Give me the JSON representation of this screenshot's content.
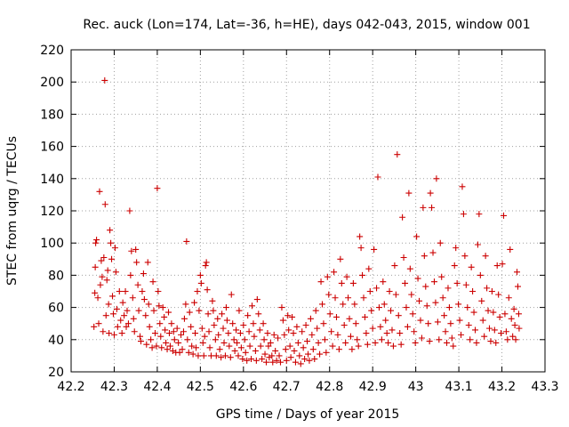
{
  "chart_data": {
    "type": "scatter",
    "title": "Rec. auck (Lon=174, Lat=-36, h=HE), days 042-043, 2015, window 001",
    "xlabel": "GPS time / Days of year 2015",
    "ylabel": "STEC from uqrg / TECUs",
    "xlim": [
      42.2,
      43.3
    ],
    "ylim": [
      20,
      220
    ],
    "xticks": [
      "42.2",
      "42.3",
      "42.4",
      "42.5",
      "42.6",
      "42.7",
      "42.8",
      "42.9",
      "43",
      "43.1",
      "43.2",
      "43.3"
    ],
    "yticks": [
      "20",
      "40",
      "60",
      "80",
      "100",
      "120",
      "140",
      "160",
      "180",
      "200",
      "220"
    ],
    "grid": true,
    "marker": "plus",
    "color": "#cc0000",
    "points": [
      [
        42.253,
        48
      ],
      [
        42.255,
        69
      ],
      [
        42.256,
        85
      ],
      [
        42.257,
        100
      ],
      [
        42.259,
        102
      ],
      [
        42.262,
        66
      ],
      [
        42.264,
        50
      ],
      [
        42.266,
        132
      ],
      [
        42.268,
        74
      ],
      [
        42.27,
        89
      ],
      [
        42.272,
        79
      ],
      [
        42.274,
        45
      ],
      [
        42.276,
        91
      ],
      [
        42.278,
        201
      ],
      [
        42.279,
        124
      ],
      [
        42.281,
        55
      ],
      [
        42.283,
        77
      ],
      [
        42.285,
        83
      ],
      [
        42.287,
        62
      ],
      [
        42.288,
        44
      ],
      [
        42.29,
        108
      ],
      [
        42.292,
        100
      ],
      [
        42.294,
        90
      ],
      [
        42.296,
        67
      ],
      [
        42.298,
        56
      ],
      [
        42.3,
        43
      ],
      [
        42.302,
        97
      ],
      [
        42.304,
        82
      ],
      [
        42.306,
        59
      ],
      [
        42.308,
        48
      ],
      [
        42.312,
        70
      ],
      [
        42.315,
        52
      ],
      [
        42.318,
        44
      ],
      [
        42.32,
        63
      ],
      [
        42.323,
        55
      ],
      [
        42.326,
        70
      ],
      [
        42.328,
        48
      ],
      [
        42.33,
        58
      ],
      [
        42.333,
        50
      ],
      [
        42.336,
        120
      ],
      [
        42.338,
        80
      ],
      [
        42.34,
        95
      ],
      [
        42.343,
        66
      ],
      [
        42.345,
        53
      ],
      [
        42.347,
        45
      ],
      [
        42.35,
        96
      ],
      [
        42.352,
        88
      ],
      [
        42.355,
        74
      ],
      [
        42.357,
        58
      ],
      [
        42.36,
        42
      ],
      [
        42.362,
        39
      ],
      [
        42.365,
        70
      ],
      [
        42.368,
        81
      ],
      [
        42.37,
        65
      ],
      [
        42.373,
        55
      ],
      [
        42.375,
        37
      ],
      [
        42.378,
        88
      ],
      [
        42.38,
        62
      ],
      [
        42.382,
        48
      ],
      [
        42.385,
        40
      ],
      [
        42.388,
        35
      ],
      [
        42.39,
        76
      ],
      [
        42.392,
        58
      ],
      [
        42.395,
        44
      ],
      [
        42.398,
        36
      ],
      [
        42.4,
        134
      ],
      [
        42.402,
        70
      ],
      [
        42.404,
        61
      ],
      [
        42.406,
        50
      ],
      [
        42.408,
        42
      ],
      [
        42.41,
        35
      ],
      [
        42.413,
        60
      ],
      [
        42.416,
        54
      ],
      [
        42.418,
        46
      ],
      [
        42.42,
        38
      ],
      [
        42.423,
        34
      ],
      [
        42.426,
        57
      ],
      [
        42.428,
        44
      ],
      [
        42.43,
        36
      ],
      [
        42.433,
        50
      ],
      [
        42.436,
        33
      ],
      [
        42.438,
        45
      ],
      [
        42.44,
        40
      ],
      [
        42.443,
        32
      ],
      [
        42.446,
        47
      ],
      [
        42.449,
        38
      ],
      [
        42.452,
        32
      ],
      [
        42.455,
        43
      ],
      [
        42.458,
        34
      ],
      [
        42.461,
        45
      ],
      [
        42.463,
        53
      ],
      [
        42.466,
        62
      ],
      [
        42.468,
        101
      ],
      [
        42.47,
        40
      ],
      [
        42.473,
        32
      ],
      [
        42.475,
        57
      ],
      [
        42.478,
        48
      ],
      [
        42.48,
        36
      ],
      [
        42.483,
        31
      ],
      [
        42.486,
        63
      ],
      [
        42.488,
        44
      ],
      [
        42.49,
        35
      ],
      [
        42.493,
        70
      ],
      [
        42.495,
        30
      ],
      [
        42.497,
        58
      ],
      [
        42.5,
        80
      ],
      [
        42.502,
        75
      ],
      [
        42.504,
        47
      ],
      [
        42.506,
        38
      ],
      [
        42.508,
        30
      ],
      [
        42.51,
        42
      ],
      [
        42.512,
        86
      ],
      [
        42.514,
        88
      ],
      [
        42.516,
        71
      ],
      [
        42.518,
        56
      ],
      [
        42.52,
        45
      ],
      [
        42.522,
        35
      ],
      [
        42.525,
        30
      ],
      [
        42.528,
        64
      ],
      [
        42.53,
        58
      ],
      [
        42.532,
        49
      ],
      [
        42.535,
        40
      ],
      [
        42.537,
        30
      ],
      [
        42.54,
        53
      ],
      [
        42.542,
        43
      ],
      [
        42.545,
        34
      ],
      [
        42.548,
        29
      ],
      [
        42.55,
        56
      ],
      [
        42.553,
        47
      ],
      [
        42.555,
        38
      ],
      [
        42.558,
        30
      ],
      [
        42.56,
        60
      ],
      [
        42.562,
        52
      ],
      [
        42.565,
        44
      ],
      [
        42.567,
        36
      ],
      [
        42.57,
        29
      ],
      [
        42.572,
        68
      ],
      [
        42.575,
        50
      ],
      [
        42.578,
        40
      ],
      [
        42.58,
        33
      ],
      [
        42.583,
        46
      ],
      [
        42.585,
        38
      ],
      [
        42.588,
        30
      ],
      [
        42.59,
        58
      ],
      [
        42.593,
        44
      ],
      [
        42.595,
        35
      ],
      [
        42.598,
        28
      ],
      [
        42.6,
        49
      ],
      [
        42.603,
        40
      ],
      [
        42.605,
        32
      ],
      [
        42.608,
        27
      ],
      [
        42.61,
        55
      ],
      [
        42.613,
        45
      ],
      [
        42.615,
        36
      ],
      [
        42.618,
        28
      ],
      [
        42.62,
        61
      ],
      [
        42.623,
        50
      ],
      [
        42.625,
        42
      ],
      [
        42.628,
        33
      ],
      [
        42.63,
        27
      ],
      [
        42.632,
        65
      ],
      [
        42.635,
        56
      ],
      [
        42.638,
        46
      ],
      [
        42.64,
        36
      ],
      [
        42.643,
        28
      ],
      [
        42.646,
        50
      ],
      [
        42.648,
        40
      ],
      [
        42.65,
        31
      ],
      [
        42.653,
        26
      ],
      [
        42.656,
        44
      ],
      [
        42.658,
        36
      ],
      [
        42.66,
        29
      ],
      [
        42.663,
        38
      ],
      [
        42.666,
        30
      ],
      [
        42.668,
        26
      ],
      [
        42.671,
        43
      ],
      [
        42.674,
        33
      ],
      [
        42.677,
        27
      ],
      [
        42.68,
        41
      ],
      [
        42.683,
        30
      ],
      [
        42.686,
        26
      ],
      [
        42.689,
        60
      ],
      [
        42.692,
        52
      ],
      [
        42.695,
        43
      ],
      [
        42.698,
        34
      ],
      [
        42.7,
        27
      ],
      [
        42.703,
        55
      ],
      [
        42.705,
        46
      ],
      [
        42.708,
        36
      ],
      [
        42.71,
        29
      ],
      [
        42.713,
        54
      ],
      [
        42.716,
        44
      ],
      [
        42.718,
        33
      ],
      [
        42.721,
        26
      ],
      [
        42.724,
        48
      ],
      [
        42.727,
        38
      ],
      [
        42.73,
        30
      ],
      [
        42.733,
        25
      ],
      [
        42.736,
        45
      ],
      [
        42.739,
        35
      ],
      [
        42.742,
        28
      ],
      [
        42.745,
        49
      ],
      [
        42.748,
        39
      ],
      [
        42.75,
        31
      ],
      [
        42.753,
        27
      ],
      [
        42.756,
        53
      ],
      [
        42.759,
        43
      ],
      [
        42.762,
        34
      ],
      [
        42.765,
        28
      ],
      [
        42.768,
        58
      ],
      [
        42.771,
        47
      ],
      [
        42.774,
        38
      ],
      [
        42.777,
        31
      ],
      [
        42.78,
        76
      ],
      [
        42.783,
        62
      ],
      [
        42.786,
        50
      ],
      [
        42.789,
        40
      ],
      [
        42.792,
        32
      ],
      [
        42.795,
        79
      ],
      [
        42.798,
        68
      ],
      [
        42.801,
        56
      ],
      [
        42.804,
        45
      ],
      [
        42.807,
        36
      ],
      [
        42.81,
        82
      ],
      [
        42.813,
        66
      ],
      [
        42.816,
        54
      ],
      [
        42.819,
        43
      ],
      [
        42.822,
        34
      ],
      [
        42.825,
        90
      ],
      [
        42.828,
        75
      ],
      [
        42.831,
        62
      ],
      [
        42.834,
        49
      ],
      [
        42.837,
        38
      ],
      [
        42.84,
        79
      ],
      [
        42.843,
        66
      ],
      [
        42.846,
        53
      ],
      [
        42.849,
        42
      ],
      [
        42.852,
        34
      ],
      [
        42.855,
        75
      ],
      [
        42.858,
        62
      ],
      [
        42.861,
        50
      ],
      [
        42.864,
        40
      ],
      [
        42.867,
        36
      ],
      [
        42.87,
        104
      ],
      [
        42.873,
        97
      ],
      [
        42.876,
        80
      ],
      [
        42.879,
        66
      ],
      [
        42.882,
        54
      ],
      [
        42.885,
        44
      ],
      [
        42.888,
        37
      ],
      [
        42.891,
        84
      ],
      [
        42.894,
        70
      ],
      [
        42.897,
        58
      ],
      [
        42.9,
        47
      ],
      [
        42.903,
        96
      ],
      [
        42.906,
        38
      ],
      [
        42.909,
        72
      ],
      [
        42.912,
        141
      ],
      [
        42.915,
        60
      ],
      [
        42.918,
        48
      ],
      [
        42.921,
        40
      ],
      [
        42.924,
        76
      ],
      [
        42.927,
        62
      ],
      [
        42.93,
        52
      ],
      [
        42.933,
        44
      ],
      [
        42.936,
        38
      ],
      [
        42.939,
        70
      ],
      [
        42.942,
        58
      ],
      [
        42.945,
        46
      ],
      [
        42.948,
        36
      ],
      [
        42.951,
        86
      ],
      [
        42.954,
        68
      ],
      [
        42.957,
        155
      ],
      [
        42.96,
        55
      ],
      [
        42.963,
        44
      ],
      [
        42.966,
        37
      ],
      [
        42.969,
        116
      ],
      [
        42.972,
        91
      ],
      [
        42.975,
        75
      ],
      [
        42.978,
        60
      ],
      [
        42.981,
        48
      ],
      [
        42.984,
        131
      ],
      [
        42.987,
        84
      ],
      [
        42.99,
        68
      ],
      [
        42.993,
        56
      ],
      [
        42.996,
        45
      ],
      [
        42.999,
        38
      ],
      [
        43.002,
        104
      ],
      [
        43.005,
        78
      ],
      [
        43.008,
        64
      ],
      [
        43.011,
        52
      ],
      [
        43.014,
        41
      ],
      [
        43.017,
        122
      ],
      [
        43.02,
        92
      ],
      [
        43.023,
        73
      ],
      [
        43.026,
        61
      ],
      [
        43.029,
        50
      ],
      [
        43.032,
        39
      ],
      [
        43.034,
        131
      ],
      [
        43.037,
        122
      ],
      [
        43.04,
        94
      ],
      [
        43.043,
        76
      ],
      [
        43.046,
        63
      ],
      [
        43.048,
        140
      ],
      [
        43.051,
        51
      ],
      [
        43.054,
        40
      ],
      [
        43.057,
        100
      ],
      [
        43.06,
        79
      ],
      [
        43.063,
        66
      ],
      [
        43.066,
        55
      ],
      [
        43.069,
        45
      ],
      [
        43.072,
        38
      ],
      [
        43.075,
        72
      ],
      [
        43.078,
        60
      ],
      [
        43.081,
        50
      ],
      [
        43.084,
        41
      ],
      [
        43.087,
        36
      ],
      [
        43.09,
        86
      ],
      [
        43.093,
        97
      ],
      [
        43.096,
        75
      ],
      [
        43.099,
        62
      ],
      [
        43.102,
        52
      ],
      [
        43.105,
        43
      ],
      [
        43.108,
        135
      ],
      [
        43.111,
        118
      ],
      [
        43.114,
        92
      ],
      [
        43.117,
        74
      ],
      [
        43.12,
        60
      ],
      [
        43.123,
        49
      ],
      [
        43.126,
        40
      ],
      [
        43.129,
        85
      ],
      [
        43.132,
        70
      ],
      [
        43.135,
        57
      ],
      [
        43.138,
        46
      ],
      [
        43.141,
        38
      ],
      [
        43.144,
        99
      ],
      [
        43.147,
        118
      ],
      [
        43.15,
        80
      ],
      [
        43.153,
        64
      ],
      [
        43.156,
        52
      ],
      [
        43.159,
        42
      ],
      [
        43.162,
        92
      ],
      [
        43.165,
        72
      ],
      [
        43.168,
        58
      ],
      [
        43.171,
        47
      ],
      [
        43.174,
        39
      ],
      [
        43.177,
        70
      ],
      [
        43.18,
        57
      ],
      [
        43.183,
        46
      ],
      [
        43.186,
        38
      ],
      [
        43.189,
        86
      ],
      [
        43.192,
        68
      ],
      [
        43.195,
        54
      ],
      [
        43.198,
        44
      ],
      [
        43.201,
        87
      ],
      [
        43.204,
        117
      ],
      [
        43.207,
        56
      ],
      [
        43.21,
        45
      ],
      [
        43.213,
        40
      ],
      [
        43.216,
        66
      ],
      [
        43.219,
        96
      ],
      [
        43.222,
        53
      ],
      [
        43.225,
        42
      ],
      [
        43.228,
        59
      ],
      [
        43.23,
        49
      ],
      [
        43.232,
        40
      ],
      [
        43.235,
        82
      ],
      [
        43.237,
        73
      ],
      [
        43.239,
        56
      ],
      [
        43.24,
        47
      ]
    ]
  }
}
